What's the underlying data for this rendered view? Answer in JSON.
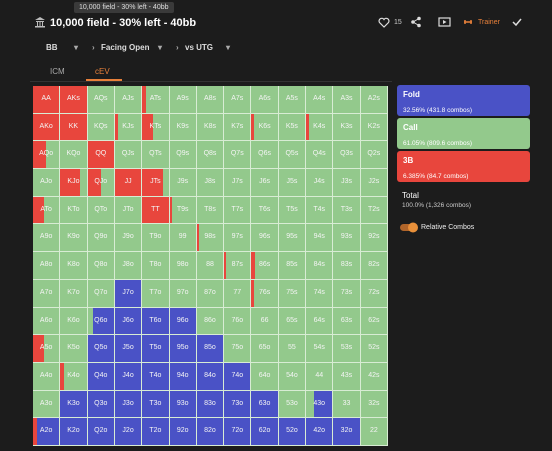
{
  "header": {
    "tooltip": "10,000 field - 30% left - 40bb",
    "title": "10,000 field - 30% left - 40bb",
    "likes": 15,
    "trainer": "Trainer"
  },
  "breadcrumb": [
    "BB",
    "Facing Open",
    "vs UTG"
  ],
  "tabs": [
    "ICM",
    "cEV"
  ],
  "grid": {
    "hands": [
      [
        "AA",
        "AKs",
        "AQs",
        "AJs",
        "ATs",
        "A9s",
        "A8s",
        "A7s",
        "A6s",
        "A5s",
        "A4s",
        "A3s",
        "A2s"
      ],
      [
        "AKo",
        "KK",
        "KQs",
        "KJs",
        "KTs",
        "K9s",
        "K8s",
        "K7s",
        "K6s",
        "K5s",
        "K4s",
        "K3s",
        "K2s"
      ],
      [
        "AQo",
        "KQo",
        "QQ",
        "QJs",
        "QTs",
        "Q9s",
        "Q8s",
        "Q7s",
        "Q6s",
        "Q5s",
        "Q4s",
        "Q3s",
        "Q2s"
      ],
      [
        "AJo",
        "KJo",
        "QJo",
        "JJ",
        "JTs",
        "J9s",
        "J8s",
        "J7s",
        "J6s",
        "J5s",
        "J4s",
        "J3s",
        "J2s"
      ],
      [
        "ATo",
        "KTo",
        "QTo",
        "JTo",
        "TT",
        "T9s",
        "T8s",
        "T7s",
        "T6s",
        "T5s",
        "T4s",
        "T3s",
        "T2s"
      ],
      [
        "A9o",
        "K9o",
        "Q9o",
        "J9o",
        "T9o",
        "99",
        "98s",
        "97s",
        "96s",
        "95s",
        "94s",
        "93s",
        "92s"
      ],
      [
        "A8o",
        "K8o",
        "Q8o",
        "J8o",
        "T8o",
        "98o",
        "88",
        "87s",
        "86s",
        "85s",
        "84s",
        "83s",
        "82s"
      ],
      [
        "A7o",
        "K7o",
        "Q7o",
        "J7o",
        "T7o",
        "97o",
        "87o",
        "77",
        "76s",
        "75s",
        "74s",
        "73s",
        "72s"
      ],
      [
        "A6o",
        "K6o",
        "Q6o",
        "J6o",
        "T6o",
        "96o",
        "86o",
        "76o",
        "66",
        "65s",
        "64s",
        "63s",
        "62s"
      ],
      [
        "A5o",
        "K5o",
        "Q5o",
        "J5o",
        "T5o",
        "95o",
        "85o",
        "75o",
        "65o",
        "55",
        "54s",
        "53s",
        "52s"
      ],
      [
        "A4o",
        "K4o",
        "Q4o",
        "J4o",
        "T4o",
        "94o",
        "84o",
        "74o",
        "64o",
        "54o",
        "44",
        "43s",
        "42s"
      ],
      [
        "A3o",
        "K3o",
        "Q3o",
        "J3o",
        "T3o",
        "93o",
        "83o",
        "73o",
        "63o",
        "53o",
        "43o",
        "33",
        "32s"
      ],
      [
        "A2o",
        "K2o",
        "Q2o",
        "J2o",
        "T2o",
        "92o",
        "82o",
        "72o",
        "62o",
        "52o",
        "42o",
        "32o",
        "22"
      ]
    ],
    "freqs": [
      [
        [
          0,
          0,
          100
        ],
        [
          0,
          0,
          100
        ],
        [
          0,
          100,
          0
        ],
        [
          0,
          100,
          0
        ],
        [
          0,
          85,
          15
        ],
        [
          0,
          100,
          0
        ],
        [
          0,
          100,
          0
        ],
        [
          0,
          100,
          0
        ],
        [
          0,
          100,
          0
        ],
        [
          0,
          100,
          0
        ],
        [
          0,
          100,
          0
        ],
        [
          0,
          100,
          0
        ],
        [
          0,
          100,
          0
        ]
      ],
      [
        [
          0,
          0,
          100
        ],
        [
          0,
          0,
          100
        ],
        [
          0,
          100,
          0
        ],
        [
          0,
          90,
          10
        ],
        [
          0,
          60,
          40
        ],
        [
          0,
          100,
          0
        ],
        [
          0,
          100,
          0
        ],
        [
          0,
          100,
          0
        ],
        [
          0,
          90,
          10
        ],
        [
          0,
          100,
          0
        ],
        [
          0,
          90,
          10
        ],
        [
          0,
          100,
          0
        ],
        [
          0,
          100,
          0
        ]
      ],
      [
        [
          0,
          50,
          50
        ],
        [
          0,
          100,
          0
        ],
        [
          0,
          0,
          100
        ],
        [
          0,
          100,
          0
        ],
        [
          0,
          100,
          0
        ],
        [
          0,
          100,
          0
        ],
        [
          0,
          100,
          0
        ],
        [
          0,
          100,
          0
        ],
        [
          0,
          100,
          0
        ],
        [
          0,
          100,
          0
        ],
        [
          0,
          100,
          0
        ],
        [
          0,
          100,
          0
        ],
        [
          0,
          100,
          0
        ]
      ],
      [
        [
          0,
          100,
          0
        ],
        [
          0,
          25,
          75
        ],
        [
          0,
          50,
          50
        ],
        [
          0,
          0,
          100
        ],
        [
          0,
          20,
          80
        ],
        [
          0,
          100,
          0
        ],
        [
          0,
          100,
          0
        ],
        [
          0,
          100,
          0
        ],
        [
          0,
          100,
          0
        ],
        [
          0,
          100,
          0
        ],
        [
          0,
          100,
          0
        ],
        [
          0,
          100,
          0
        ],
        [
          0,
          100,
          0
        ]
      ],
      [
        [
          0,
          60,
          40
        ],
        [
          0,
          100,
          0
        ],
        [
          0,
          100,
          0
        ],
        [
          0,
          100,
          0
        ],
        [
          0,
          0,
          100
        ],
        [
          0,
          92,
          8
        ],
        [
          0,
          100,
          0
        ],
        [
          0,
          100,
          0
        ],
        [
          0,
          100,
          0
        ],
        [
          0,
          100,
          0
        ],
        [
          0,
          100,
          0
        ],
        [
          0,
          100,
          0
        ],
        [
          0,
          100,
          0
        ]
      ],
      [
        [
          0,
          100,
          0
        ],
        [
          0,
          100,
          0
        ],
        [
          0,
          100,
          0
        ],
        [
          0,
          100,
          0
        ],
        [
          0,
          100,
          0
        ],
        [
          0,
          100,
          0
        ],
        [
          0,
          92,
          8
        ],
        [
          0,
          100,
          0
        ],
        [
          0,
          100,
          0
        ],
        [
          0,
          100,
          0
        ],
        [
          0,
          100,
          0
        ],
        [
          0,
          100,
          0
        ],
        [
          0,
          100,
          0
        ]
      ],
      [
        [
          0,
          100,
          0
        ],
        [
          0,
          100,
          0
        ],
        [
          0,
          100,
          0
        ],
        [
          0,
          100,
          0
        ],
        [
          0,
          100,
          0
        ],
        [
          0,
          100,
          0
        ],
        [
          0,
          100,
          0
        ],
        [
          0,
          92,
          8
        ],
        [
          0,
          85,
          15
        ],
        [
          0,
          100,
          0
        ],
        [
          0,
          100,
          0
        ],
        [
          0,
          100,
          0
        ],
        [
          0,
          100,
          0
        ]
      ],
      [
        [
          0,
          100,
          0
        ],
        [
          0,
          100,
          0
        ],
        [
          0,
          100,
          0
        ],
        [
          100,
          0,
          0
        ],
        [
          0,
          100,
          0
        ],
        [
          0,
          100,
          0
        ],
        [
          0,
          100,
          0
        ],
        [
          0,
          100,
          0
        ],
        [
          0,
          90,
          10
        ],
        [
          0,
          100,
          0
        ],
        [
          0,
          100,
          0
        ],
        [
          0,
          100,
          0
        ],
        [
          0,
          100,
          0
        ]
      ],
      [
        [
          0,
          100,
          0
        ],
        [
          0,
          100,
          0
        ],
        [
          80,
          20,
          0
        ],
        [
          100,
          0,
          0
        ],
        [
          100,
          0,
          0
        ],
        [
          100,
          0,
          0
        ],
        [
          0,
          100,
          0
        ],
        [
          0,
          100,
          0
        ],
        [
          0,
          100,
          0
        ],
        [
          0,
          100,
          0
        ],
        [
          0,
          100,
          0
        ],
        [
          0,
          100,
          0
        ],
        [
          0,
          100,
          0
        ]
      ],
      [
        [
          0,
          60,
          40
        ],
        [
          0,
          100,
          0
        ],
        [
          100,
          0,
          0
        ],
        [
          100,
          0,
          0
        ],
        [
          100,
          0,
          0
        ],
        [
          100,
          0,
          0
        ],
        [
          100,
          0,
          0
        ],
        [
          0,
          100,
          0
        ],
        [
          0,
          100,
          0
        ],
        [
          0,
          100,
          0
        ],
        [
          0,
          100,
          0
        ],
        [
          0,
          100,
          0
        ],
        [
          0,
          100,
          0
        ]
      ],
      [
        [
          0,
          100,
          0
        ],
        [
          0,
          85,
          15
        ],
        [
          100,
          0,
          0
        ],
        [
          100,
          0,
          0
        ],
        [
          100,
          0,
          0
        ],
        [
          100,
          0,
          0
        ],
        [
          100,
          0,
          0
        ],
        [
          100,
          0,
          0
        ],
        [
          0,
          100,
          0
        ],
        [
          0,
          100,
          0
        ],
        [
          0,
          100,
          0
        ],
        [
          0,
          100,
          0
        ],
        [
          0,
          100,
          0
        ]
      ],
      [
        [
          0,
          100,
          0
        ],
        [
          100,
          0,
          0
        ],
        [
          100,
          0,
          0
        ],
        [
          100,
          0,
          0
        ],
        [
          100,
          0,
          0
        ],
        [
          100,
          0,
          0
        ],
        [
          100,
          0,
          0
        ],
        [
          100,
          0,
          0
        ],
        [
          100,
          0,
          0
        ],
        [
          0,
          100,
          0
        ],
        [
          70,
          30,
          0
        ],
        [
          0,
          100,
          0
        ],
        [
          0,
          100,
          0
        ]
      ],
      [
        [
          85,
          0,
          15
        ],
        [
          100,
          0,
          0
        ],
        [
          100,
          0,
          0
        ],
        [
          100,
          0,
          0
        ],
        [
          100,
          0,
          0
        ],
        [
          100,
          0,
          0
        ],
        [
          100,
          0,
          0
        ],
        [
          100,
          0,
          0
        ],
        [
          100,
          0,
          0
        ],
        [
          100,
          0,
          0
        ],
        [
          100,
          0,
          0
        ],
        [
          100,
          0,
          0
        ],
        [
          0,
          100,
          0
        ]
      ]
    ]
  },
  "legend": [
    {
      "name": "Fold",
      "detail": "32.56% (431.8 combos)",
      "color": "#4a52c6"
    },
    {
      "name": "Call",
      "detail": "61.05% (809.6 combos)",
      "color": "#93c98c"
    },
    {
      "name": "3B",
      "detail": "6.385% (84.7 combos)",
      "color": "#e8463d"
    }
  ],
  "total": {
    "label": "Total",
    "detail": "100.0% (1,326 combos)"
  },
  "toggle": "Relative Combos"
}
